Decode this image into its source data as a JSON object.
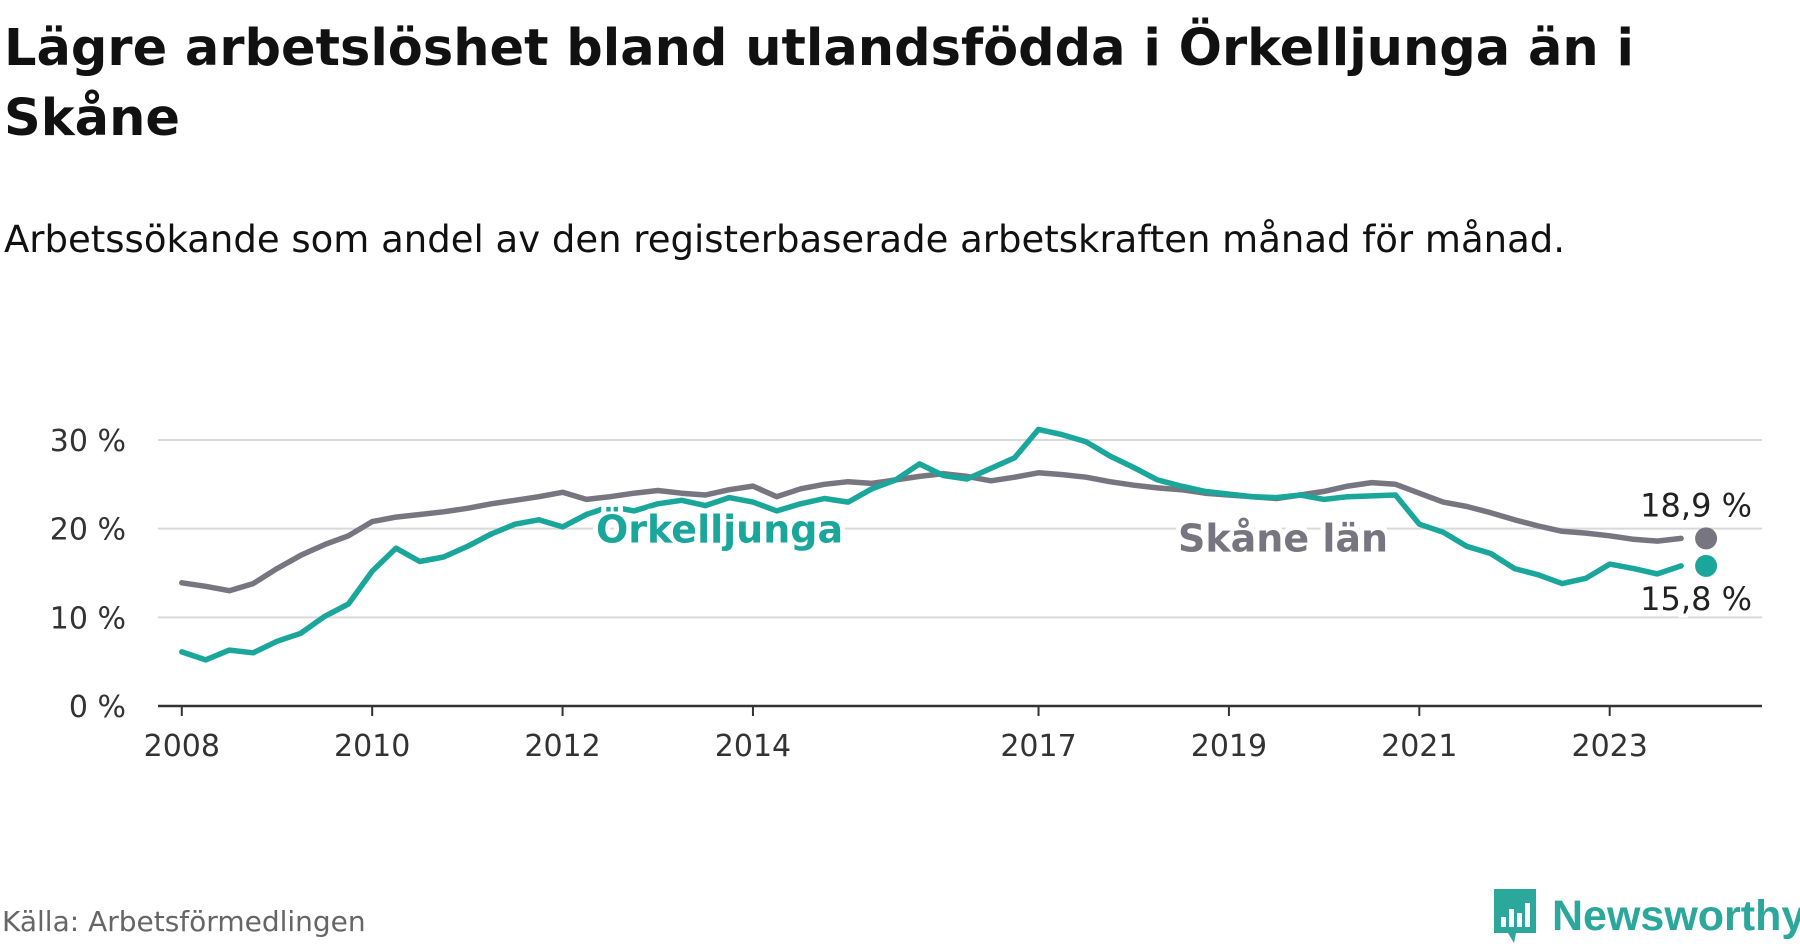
{
  "header": {
    "title": "Lägre arbetslöshet bland utlandsfödda i Örkelljunga än i Skåne",
    "subtitle": "Arbetssökande som andel av den registerbaserade arbetskraften månad för månad."
  },
  "footer": {
    "source": "Källa: Arbetsförmedlingen",
    "brand": "Newsworthy"
  },
  "colors": {
    "orkelljunga": "#1aa69a",
    "skane": "#77757f",
    "grid": "#d9d9d9",
    "axis": "#333333",
    "brand": "#2ba79b"
  },
  "chart_data": {
    "type": "line",
    "title": "Lägre arbetslöshet bland utlandsfödda i Örkelljunga än i Skåne",
    "xlabel": "",
    "ylabel": "",
    "xlim": [
      2007.75,
      2024.6
    ],
    "ylim": [
      0,
      30
    ],
    "y_ticks": [
      0,
      10,
      20,
      30
    ],
    "y_tick_labels": [
      "0 %",
      "10 %",
      "20 %",
      "30 %"
    ],
    "x_ticks": [
      2008,
      2010,
      2012,
      2014,
      2017,
      2019,
      2021,
      2023
    ],
    "x_tick_labels": [
      "2008",
      "2010",
      "2012",
      "2014",
      "2017",
      "2019",
      "2021",
      "2023"
    ],
    "grid": true,
    "series": [
      {
        "name": "Skåne län",
        "key": "skane",
        "label": "Skåne län",
        "end_value": 18.9,
        "end_label": "18,9 %",
        "x": [
          2008.0,
          2008.25,
          2008.5,
          2008.75,
          2009.0,
          2009.25,
          2009.5,
          2009.75,
          2010.0,
          2010.25,
          2010.5,
          2010.75,
          2011.0,
          2011.25,
          2011.5,
          2011.75,
          2012.0,
          2012.25,
          2012.5,
          2012.75,
          2013.0,
          2013.25,
          2013.5,
          2013.75,
          2014.0,
          2014.25,
          2014.5,
          2014.75,
          2015.0,
          2015.25,
          2015.5,
          2015.75,
          2016.0,
          2016.25,
          2016.5,
          2016.75,
          2017.0,
          2017.25,
          2017.5,
          2017.75,
          2018.0,
          2018.25,
          2018.5,
          2018.75,
          2019.0,
          2019.25,
          2019.5,
          2019.75,
          2020.0,
          2020.25,
          2020.5,
          2020.75,
          2021.0,
          2021.25,
          2021.5,
          2021.75,
          2022.0,
          2022.25,
          2022.5,
          2022.75,
          2023.0,
          2023.25,
          2023.5,
          2023.75
        ],
        "values": [
          13.9,
          13.5,
          13.0,
          13.8,
          15.5,
          17.0,
          18.2,
          19.2,
          20.8,
          21.3,
          21.6,
          21.9,
          22.3,
          22.8,
          23.2,
          23.6,
          24.1,
          23.3,
          23.6,
          24.0,
          24.3,
          24.0,
          23.8,
          24.4,
          24.8,
          23.6,
          24.5,
          25.0,
          25.3,
          25.1,
          25.5,
          25.9,
          26.2,
          25.9,
          25.4,
          25.8,
          26.3,
          26.1,
          25.8,
          25.3,
          24.9,
          24.6,
          24.4,
          24.0,
          23.8,
          23.6,
          23.4,
          23.8,
          24.2,
          24.8,
          25.2,
          25.0,
          24.0,
          23.0,
          22.5,
          21.8,
          21.0,
          20.3,
          19.7,
          19.5,
          19.2,
          18.8,
          18.6,
          18.9
        ]
      },
      {
        "name": "Örkelljunga",
        "key": "orkelljunga",
        "label": "Örkelljunga",
        "end_value": 15.8,
        "end_label": "15,8 %",
        "x": [
          2008.0,
          2008.25,
          2008.5,
          2008.75,
          2009.0,
          2009.25,
          2009.5,
          2009.75,
          2010.0,
          2010.25,
          2010.5,
          2010.75,
          2011.0,
          2011.25,
          2011.5,
          2011.75,
          2012.0,
          2012.25,
          2012.5,
          2012.75,
          2013.0,
          2013.25,
          2013.5,
          2013.75,
          2014.0,
          2014.25,
          2014.5,
          2014.75,
          2015.0,
          2015.25,
          2015.5,
          2015.75,
          2016.0,
          2016.25,
          2016.5,
          2016.75,
          2017.0,
          2017.25,
          2017.5,
          2017.75,
          2018.0,
          2018.25,
          2018.5,
          2018.75,
          2019.0,
          2019.25,
          2019.5,
          2019.75,
          2020.0,
          2020.25,
          2020.5,
          2020.75,
          2021.0,
          2021.25,
          2021.5,
          2021.75,
          2022.0,
          2022.25,
          2022.5,
          2022.75,
          2023.0,
          2023.25,
          2023.5,
          2023.75
        ],
        "values": [
          6.1,
          5.2,
          6.3,
          6.0,
          7.3,
          8.2,
          10.1,
          11.5,
          15.2,
          17.8,
          16.3,
          16.8,
          18.0,
          19.4,
          20.5,
          21.0,
          20.2,
          21.6,
          22.5,
          22.0,
          22.8,
          23.2,
          22.6,
          23.5,
          23.0,
          22.0,
          22.8,
          23.4,
          23.0,
          24.5,
          25.5,
          27.3,
          26.0,
          25.6,
          26.8,
          28.0,
          31.2,
          30.6,
          29.8,
          28.2,
          26.9,
          25.5,
          24.8,
          24.2,
          23.9,
          23.6,
          23.5,
          23.8,
          23.3,
          23.6,
          23.7,
          23.8,
          20.5,
          19.6,
          18.0,
          17.2,
          15.5,
          14.8,
          13.8,
          14.4,
          16.0,
          15.5,
          14.9,
          15.8
        ]
      }
    ]
  }
}
